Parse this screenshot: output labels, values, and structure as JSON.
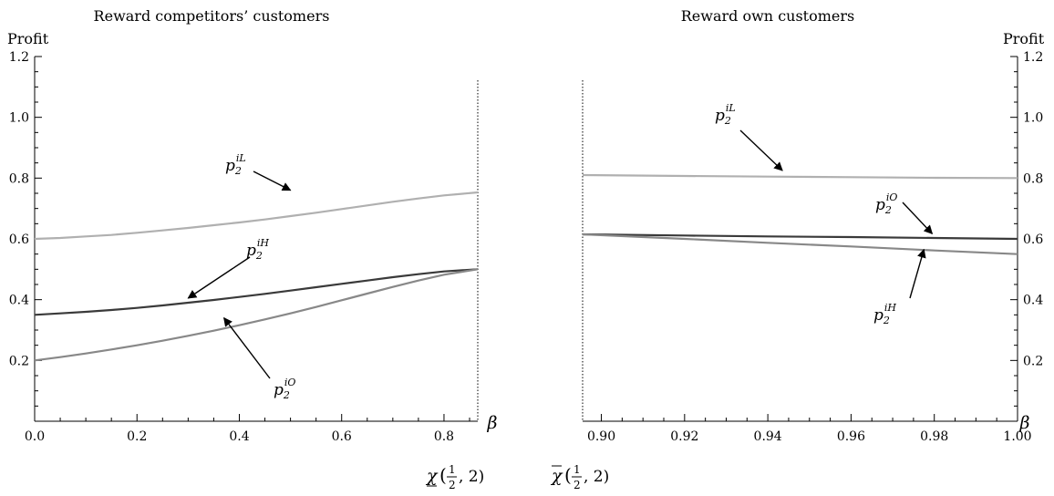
{
  "chart_data": [
    {
      "type": "line",
      "title": "Reward  competitors’ customers",
      "ylabel": "Profit",
      "xlabel": "β",
      "xlim": [
        0.0,
        0.866
      ],
      "ylim": [
        0.0,
        1.2
      ],
      "xticks": [
        0.0,
        0.2,
        0.4,
        0.6,
        0.8
      ],
      "xtick_labels": [
        "0.0",
        "0.2",
        "0.4",
        "0.6",
        "0.8"
      ],
      "yticks": [
        0.2,
        0.4,
        0.6,
        0.8,
        1.0,
        1.2
      ],
      "ytick_labels": [
        "0.2",
        "0.4",
        "0.6",
        "0.8",
        "1.0",
        "1.2"
      ],
      "y_axis_side": "left",
      "grid": false,
      "legend": "none",
      "boundary": {
        "x": 0.866,
        "label_symbol": "χ",
        "label_args": "(½, 2)",
        "underlined": true
      },
      "x": [
        0.0,
        0.05,
        0.1,
        0.15,
        0.2,
        0.25,
        0.3,
        0.35,
        0.4,
        0.45,
        0.5,
        0.55,
        0.6,
        0.65,
        0.7,
        0.75,
        0.8,
        0.866
      ],
      "series": [
        {
          "name": "p2iL",
          "color": "#b0b0b0",
          "values": [
            0.6,
            0.603,
            0.608,
            0.613,
            0.62,
            0.628,
            0.636,
            0.645,
            0.654,
            0.664,
            0.675,
            0.686,
            0.698,
            0.71,
            0.722,
            0.733,
            0.743,
            0.753
          ]
        },
        {
          "name": "p2iH",
          "color": "#3a3a3a",
          "values": [
            0.35,
            0.355,
            0.36,
            0.366,
            0.373,
            0.381,
            0.39,
            0.399,
            0.409,
            0.419,
            0.43,
            0.441,
            0.452,
            0.463,
            0.474,
            0.484,
            0.493,
            0.5
          ]
        },
        {
          "name": "p2iO",
          "color": "#888888",
          "values": [
            0.2,
            0.211,
            0.223,
            0.236,
            0.25,
            0.265,
            0.281,
            0.298,
            0.316,
            0.335,
            0.355,
            0.376,
            0.398,
            0.42,
            0.442,
            0.463,
            0.482,
            0.5
          ]
        }
      ],
      "annotations": [
        {
          "text_main": "p",
          "sub": "2",
          "sup": "iL",
          "arrow_to": [
            0.5,
            0.76
          ]
        },
        {
          "text_main": "p",
          "sub": "2",
          "sup": "iH",
          "arrow_to": [
            0.3,
            0.405
          ]
        },
        {
          "text_main": "p",
          "sub": "2",
          "sup": "iO",
          "arrow_to": [
            0.37,
            0.34
          ]
        }
      ]
    },
    {
      "type": "line",
      "title": "Reward own customers",
      "ylabel": "Profit",
      "xlabel": "β",
      "xlim": [
        0.8955,
        1.0
      ],
      "ylim": [
        0.0,
        1.2
      ],
      "xticks": [
        0.9,
        0.92,
        0.94,
        0.96,
        0.98,
        1.0
      ],
      "xtick_labels": [
        "0.90",
        "0.92",
        "0.94",
        "0.96",
        "0.98",
        "1.00"
      ],
      "yticks": [
        0.2,
        0.4,
        0.6,
        0.8,
        1.0,
        1.2
      ],
      "ytick_labels": [
        "0.2",
        "0.4",
        "0.6",
        "0.8",
        "1.0",
        "1.2"
      ],
      "y_axis_side": "right",
      "grid": false,
      "legend": "none",
      "boundary": {
        "x": 0.8955,
        "label_symbol": "χ",
        "label_args": "(½, 2)",
        "overlined": true
      },
      "x": [
        0.8955,
        0.92,
        0.94,
        0.96,
        0.98,
        1.0
      ],
      "series": [
        {
          "name": "p2iL",
          "color": "#b0b0b0",
          "values": [
            0.81,
            0.807,
            0.805,
            0.803,
            0.801,
            0.8
          ]
        },
        {
          "name": "p2iO",
          "color": "#3a3a3a",
          "values": [
            0.615,
            0.611,
            0.608,
            0.606,
            0.603,
            0.6
          ]
        },
        {
          "name": "p2iH",
          "color": "#888888",
          "values": [
            0.615,
            0.6,
            0.587,
            0.575,
            0.562,
            0.55
          ]
        }
      ],
      "annotations": [
        {
          "text_main": "p",
          "sub": "2",
          "sup": "iL",
          "arrow_to": [
            0.9435,
            0.825
          ]
        },
        {
          "text_main": "p",
          "sub": "2",
          "sup": "iO",
          "arrow_to": [
            0.9795,
            0.617
          ]
        },
        {
          "text_main": "p",
          "sub": "2",
          "sup": "iH",
          "arrow_to": [
            0.9775,
            0.565
          ]
        }
      ]
    }
  ]
}
